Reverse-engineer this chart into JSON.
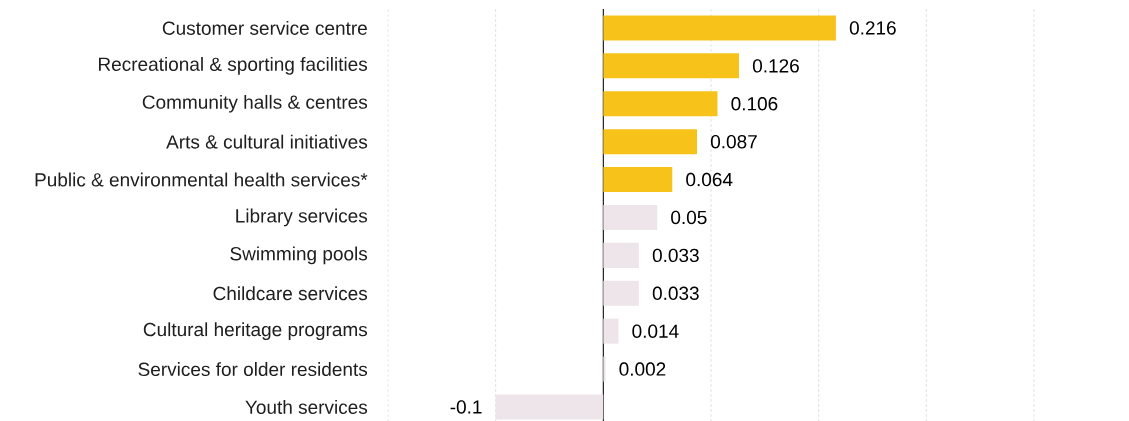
{
  "chart_data": {
    "type": "bar",
    "orientation": "horizontal",
    "categories": [
      "Customer service centre",
      "Recreational & sporting facilities",
      "Community halls & centres",
      "Arts & cultural initiatives",
      "Public & environmental health services*",
      "Library services",
      "Swimming pools",
      "Childcare services",
      "Cultural heritage programs",
      "Services for older residents",
      "Youth services"
    ],
    "values": [
      0.216,
      0.126,
      0.106,
      0.087,
      0.064,
      0.05,
      0.033,
      0.033,
      0.014,
      0.002,
      -0.1
    ],
    "colors": [
      "#f7c31a",
      "#f7c31a",
      "#f7c31a",
      "#f7c31a",
      "#f7c31a",
      "#ede5ea",
      "#ede5ea",
      "#ede5ea",
      "#ede5ea",
      "#ede5ea",
      "#ede5ea"
    ],
    "xlim": [
      -0.2,
      0.4
    ],
    "xticks": [
      {
        "value": -0.2,
        "label": null
      },
      {
        "value": -0.1,
        "label": null
      },
      {
        "value": 0,
        "label": null
      },
      {
        "value": 0.1,
        "label": null
      },
      {
        "value": 0.2,
        "label": null
      },
      {
        "value": 0.3,
        "label": null
      },
      {
        "value": 0.4,
        "label": null
      }
    ],
    "grid": "x",
    "tick_labels": "y",
    "data_labels": true
  }
}
